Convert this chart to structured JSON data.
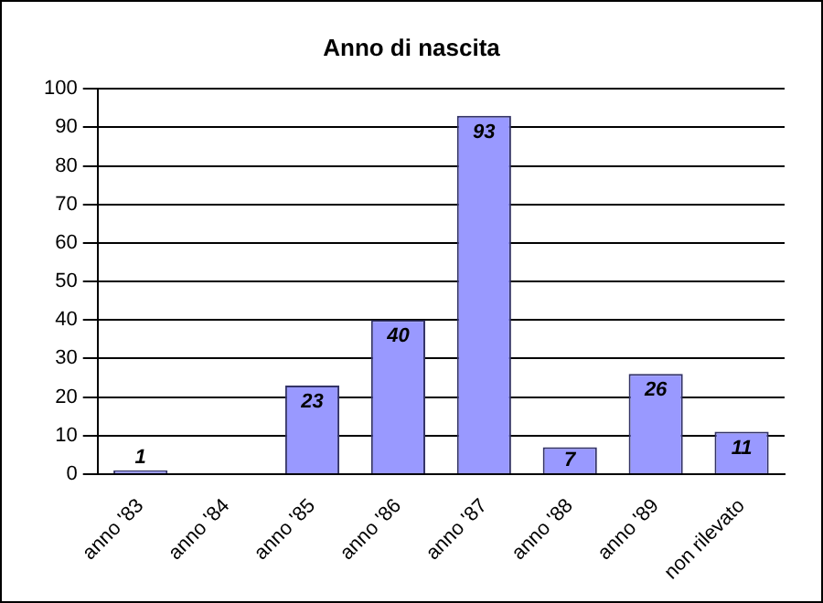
{
  "chart_data": {
    "type": "bar",
    "title": "Anno di nascita",
    "categories": [
      "anno '83",
      "anno '84",
      "anno '85",
      "anno '86",
      "anno '87",
      "anno '88",
      "anno '89",
      "non rilevato"
    ],
    "values": [
      1,
      null,
      23,
      40,
      93,
      7,
      26,
      11
    ],
    "color": "#9999ff",
    "ylim": [
      0,
      100
    ],
    "yticks": [
      0,
      10,
      20,
      30,
      40,
      50,
      60,
      70,
      80,
      90,
      100
    ],
    "grid": "y",
    "data_labels": true,
    "legend": false
  }
}
